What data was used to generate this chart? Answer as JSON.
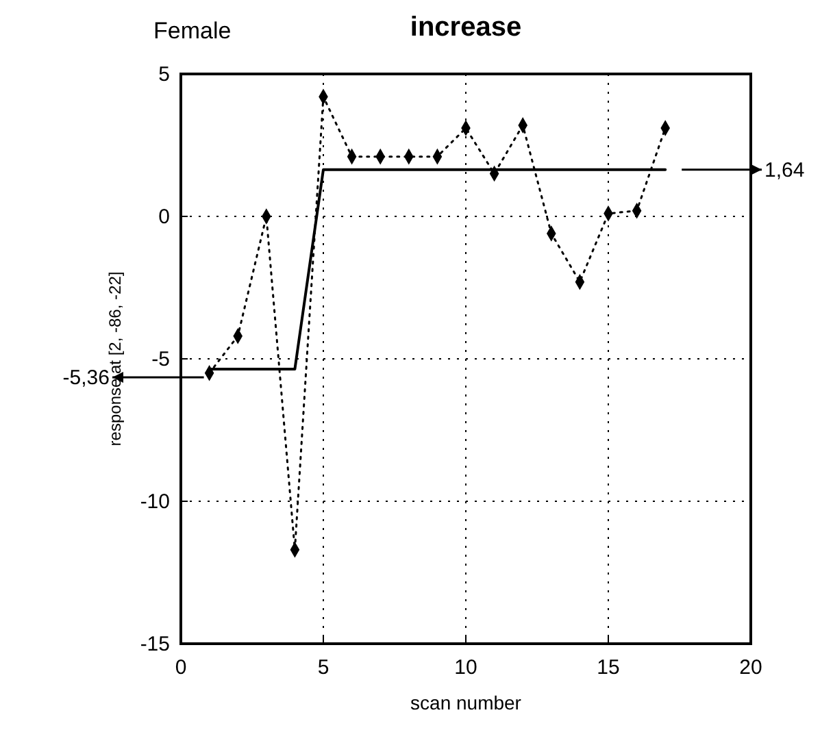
{
  "chart_data": {
    "type": "line",
    "title": "increase",
    "subtitle": "Female",
    "xlabel": "scan number",
    "ylabel": "response at [2, -86, -22]",
    "xlim": [
      0,
      20
    ],
    "xticks": [
      0,
      5,
      10,
      15,
      20
    ],
    "ylim": [
      -15,
      5
    ],
    "yticks": [
      -15,
      -10,
      -5,
      0,
      5
    ],
    "grid": true,
    "series": [
      {
        "color": "#000000",
        "marker": "diamond",
        "line_style": "dotted",
        "x": [
          1,
          2,
          3,
          4,
          5,
          6,
          7,
          8,
          9,
          10,
          11,
          12,
          13,
          14,
          15,
          16,
          17
        ],
        "values": [
          -5.5,
          -4.2,
          0,
          -11.7,
          4.2,
          2.1,
          2.1,
          2.1,
          2.1,
          3.1,
          1.5,
          3.2,
          -0.6,
          -2.3,
          0.1,
          0.2,
          3.1
        ]
      },
      {
        "color": "#000000",
        "marker": "none",
        "line_style": "solid",
        "x": [
          1,
          4,
          5,
          17
        ],
        "values": [
          -5.36,
          -5.36,
          1.64,
          1.64
        ]
      }
    ],
    "annotations": [
      "-5,36",
      "1,64"
    ]
  }
}
